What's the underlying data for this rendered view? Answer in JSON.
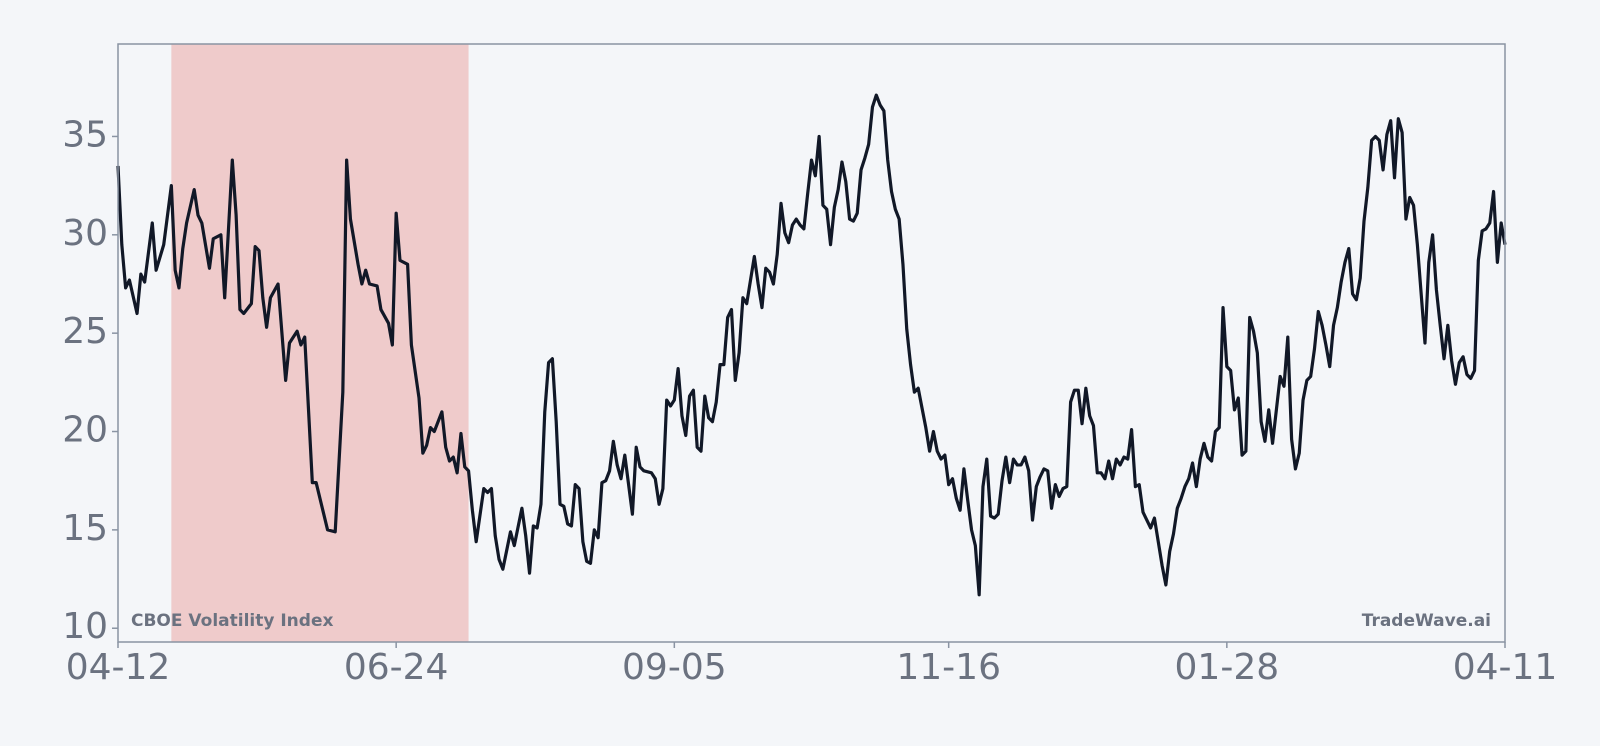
{
  "chart_data": {
    "type": "line",
    "xlim": [
      0,
      364
    ],
    "xticks": [
      {
        "value": 0,
        "label": "04-12"
      },
      {
        "value": 73,
        "label": "06-24"
      },
      {
        "value": 146,
        "label": "09-05"
      },
      {
        "value": 218,
        "label": "11-16"
      },
      {
        "value": 291,
        "label": "01-28"
      },
      {
        "value": 364,
        "label": "04-11"
      }
    ],
    "ylim": [
      9.3,
      39.7
    ],
    "yticks": [
      10,
      15,
      20,
      25,
      30,
      35
    ],
    "grid": false,
    "shaded_span": {
      "xlim": [
        14,
        92
      ],
      "color": "#efcbcb"
    },
    "watermark": "TradeWave.ai",
    "x": [
      0,
      1,
      2,
      3,
      5,
      6,
      7,
      9,
      10,
      12,
      14,
      15,
      16,
      17,
      18,
      20,
      21,
      22,
      24,
      25,
      27,
      28,
      30,
      31,
      32,
      33,
      35,
      36,
      37,
      38,
      39,
      40,
      42,
      44,
      45,
      47,
      48,
      49,
      51,
      52,
      54,
      55,
      57,
      59,
      60,
      61,
      63,
      64,
      65,
      66,
      68,
      69,
      71,
      72,
      73,
      74,
      76,
      77,
      79,
      80,
      81,
      82,
      83,
      85,
      86,
      87,
      88,
      89,
      90,
      91,
      92,
      93,
      94,
      96,
      97,
      98,
      99,
      100,
      101,
      103,
      104,
      106,
      107,
      108,
      109,
      110,
      111,
      112,
      113,
      114,
      115,
      116,
      117,
      118,
      119,
      120,
      121,
      122,
      123,
      124,
      125,
      126,
      127,
      128,
      129,
      130,
      131,
      132,
      133,
      135,
      136,
      137,
      138,
      140,
      141,
      142,
      143,
      144,
      145,
      146,
      147,
      148,
      149,
      150,
      151,
      152,
      153,
      154,
      155,
      156,
      157,
      158,
      159,
      160,
      161,
      162,
      163,
      164,
      165,
      167,
      168,
      169,
      170,
      171,
      172,
      173,
      174,
      175,
      176,
      177,
      178,
      179,
      180,
      181,
      182,
      183,
      184,
      185,
      186,
      187,
      188,
      189,
      190,
      191,
      192,
      193,
      194,
      195,
      196,
      197,
      198,
      199,
      200,
      201,
      202,
      203,
      204,
      205,
      206,
      207,
      208,
      209,
      210,
      211,
      212,
      213,
      214,
      215,
      216,
      217,
      218,
      219,
      220,
      221,
      222,
      223,
      224,
      225,
      226,
      227,
      228,
      229,
      230,
      231,
      232,
      233,
      234,
      235,
      236,
      237,
      238,
      239,
      240,
      241,
      242,
      243,
      244,
      245,
      246,
      247,
      248,
      249,
      250,
      251,
      252,
      253,
      254,
      255,
      256,
      257,
      258,
      259,
      260,
      261,
      262,
      263,
      264,
      265,
      266,
      267,
      268,
      269,
      270,
      271,
      272,
      273,
      274,
      275,
      276,
      277,
      278,
      279,
      280,
      281,
      282,
      283,
      284,
      285,
      286,
      287,
      288,
      289,
      290,
      291,
      292,
      293,
      294,
      295,
      296,
      297,
      298,
      299,
      300,
      301,
      302,
      303,
      304,
      305,
      306,
      307,
      308,
      309,
      310,
      311,
      312,
      313,
      314,
      315,
      316,
      317,
      318,
      319,
      320,
      321,
      322,
      323,
      324,
      325,
      326,
      327,
      328,
      329,
      330,
      331,
      332,
      333,
      334,
      335,
      336,
      337,
      338,
      339,
      340,
      341,
      342,
      343,
      344,
      345,
      346,
      347,
      348,
      349,
      350,
      351,
      352,
      353,
      354,
      355,
      356,
      357,
      358,
      359,
      360,
      361,
      362,
      363,
      364
    ],
    "series": [
      {
        "name": "CBOE Volatility Index",
        "color": "#111827",
        "values": [
          33.5,
          29.5,
          27.3,
          27.7,
          26,
          28,
          27.6,
          30.6,
          28.2,
          29.5,
          32.5,
          28.2,
          27.3,
          29.3,
          30.6,
          32.3,
          31,
          30.6,
          28.3,
          29.8,
          30,
          26.8,
          33.8,
          31,
          26.2,
          26,
          26.5,
          29.4,
          29.2,
          26.8,
          25.3,
          26.8,
          27.5,
          22.6,
          24.5,
          25.1,
          24.4,
          24.8,
          17.4,
          17.4,
          15.8,
          15,
          14.9,
          22,
          33.8,
          30.8,
          28.5,
          27.5,
          28.2,
          27.5,
          27.4,
          26.2,
          25.5,
          24.4,
          31.1,
          28.7,
          28.5,
          24.4,
          21.7,
          18.9,
          19.3,
          20.2,
          20,
          21,
          19.2,
          18.5,
          18.7,
          17.9,
          19.9,
          18.2,
          18,
          16,
          14.4,
          17.1,
          16.9,
          17.1,
          14.7,
          13.5,
          13,
          14.9,
          14.2,
          16.1,
          14.7,
          12.8,
          15.2,
          15.1,
          16.3,
          21,
          23.5,
          23.7,
          20.5,
          16.3,
          16.2,
          15.3,
          15.2,
          17.3,
          17.1,
          14.4,
          13.4,
          13.3,
          15,
          14.6,
          17.4,
          17.5,
          18,
          19.5,
          18.3,
          17.6,
          18.8,
          15.8,
          19.2,
          18.2,
          18,
          17.9,
          17.6,
          16.3,
          17.1,
          21.6,
          21.3,
          21.6,
          23.2,
          20.8,
          19.8,
          21.8,
          22.1,
          19.2,
          19,
          21.8,
          20.7,
          20.5,
          21.5,
          23.4,
          23.4,
          25.8,
          26.2,
          22.6,
          24,
          26.8,
          26.5,
          28.9,
          27.5,
          26.3,
          28.3,
          28.1,
          27.5,
          29,
          31.6,
          30.1,
          29.6,
          30.5,
          30.8,
          30.5,
          30.3,
          32.1,
          33.8,
          33,
          35,
          31.5,
          31.3,
          29.5,
          31.4,
          32.3,
          33.7,
          32.7,
          30.8,
          30.7,
          31.1,
          33.3,
          33.9,
          34.6,
          36.5,
          37.1,
          36.6,
          36.3,
          33.8,
          32.2,
          31.3,
          30.8,
          28.5,
          25.2,
          23.4,
          22,
          22.2,
          21.2,
          20.2,
          19,
          20,
          19,
          18.6,
          18.8,
          17.3,
          17.6,
          16.6,
          16,
          18.1,
          16.5,
          15,
          14.2,
          11.7,
          17.2,
          18.6,
          15.7,
          15.6,
          15.8,
          17.5,
          18.7,
          17.4,
          18.6,
          18.3,
          18.3,
          18.7,
          18,
          15.5,
          17.2,
          17.7,
          18.1,
          18,
          16.1,
          17.3,
          16.7,
          17.1,
          17.2,
          21.5,
          22.1,
          22.1,
          20.4,
          22.2,
          20.8,
          20.3,
          17.9,
          17.9,
          17.6,
          18.5,
          17.6,
          18.6,
          18.3,
          18.7,
          18.6,
          20.1,
          17.2,
          17.3,
          15.9,
          15.5,
          15.1,
          15.6,
          14.4,
          13.2,
          12.2,
          13.9,
          14.8,
          16.1,
          16.6,
          17.2,
          17.6,
          18.4,
          17.2,
          18.6,
          19.4,
          18.7,
          18.5,
          20,
          20.2,
          26.3,
          23.3,
          23.1,
          21.1,
          21.7,
          18.8,
          19,
          25.8,
          25.1,
          24,
          20.5,
          19.5,
          21.1,
          19.4,
          21.1,
          22.8,
          22.3,
          24.8,
          19.6,
          18.1,
          18.9,
          21.6,
          22.6,
          22.8,
          24.2,
          26.1,
          25.4,
          24.4,
          23.3,
          25.4,
          26.3,
          27.6,
          28.6,
          29.3,
          27,
          26.7,
          27.8,
          30.7,
          32.4,
          34.8,
          35,
          34.8,
          33.3,
          35.1,
          35.8,
          32.9,
          35.9,
          35.2,
          30.8,
          31.9,
          31.5,
          29.5,
          27,
          24.5,
          28.6,
          30,
          27.2,
          25.4,
          23.7,
          25.4,
          23.6,
          22.4,
          23.5,
          23.8,
          22.9,
          22.7,
          23.1,
          28.7,
          30.2,
          30.3,
          30.6,
          32.2,
          28.6,
          30.6,
          29.5
        ]
      }
    ]
  }
}
